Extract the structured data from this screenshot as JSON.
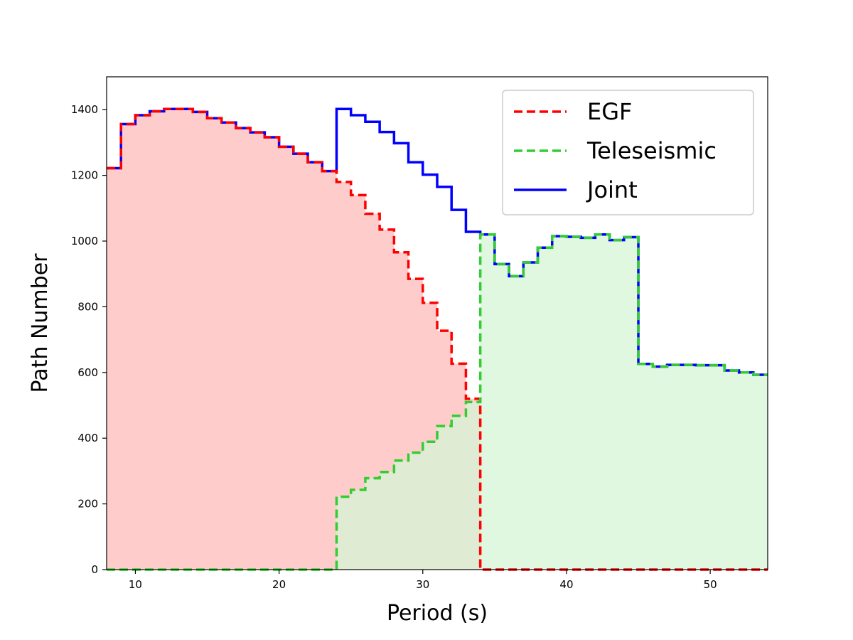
{
  "chart_data": {
    "type": "line",
    "drawstyle": "steps-post",
    "xlabel": "Period (s)",
    "ylabel": "Path Number",
    "xlim": [
      8,
      54
    ],
    "ylim": [
      0,
      1500
    ],
    "xticks": [
      10,
      20,
      30,
      40,
      50
    ],
    "yticks": [
      0,
      200,
      400,
      600,
      800,
      1000,
      1200,
      1400
    ],
    "grid": false,
    "legend_position": "top-right",
    "series": [
      {
        "name": "EGF",
        "style": "dashed",
        "color": "#ff0000",
        "fill_color": "#ffcccc",
        "x": [
          8,
          9,
          10,
          11,
          12,
          13,
          14,
          15,
          16,
          17,
          18,
          19,
          20,
          21,
          22,
          23,
          24,
          25,
          26,
          27,
          28,
          29,
          30,
          31,
          32,
          33,
          34,
          35,
          36,
          37,
          38,
          39,
          40,
          41,
          42,
          43,
          44,
          45,
          46,
          47,
          48,
          49,
          50,
          51,
          52,
          53,
          54
        ],
        "y": [
          1222,
          1356,
          1383,
          1395,
          1402,
          1402,
          1393,
          1374,
          1361,
          1344,
          1331,
          1316,
          1287,
          1266,
          1240,
          1213,
          1180,
          1140,
          1083,
          1035,
          966,
          885,
          812,
          727,
          627,
          520,
          0,
          0,
          0,
          0,
          0,
          0,
          0,
          0,
          0,
          0,
          0,
          0,
          0,
          0,
          0,
          0,
          0,
          0,
          0,
          0,
          0
        ]
      },
      {
        "name": "Teleseismic",
        "style": "dashed",
        "color": "#33cc33",
        "fill_color": "#d5f5d5",
        "x": [
          8,
          9,
          10,
          11,
          12,
          13,
          14,
          15,
          16,
          17,
          18,
          19,
          20,
          21,
          22,
          23,
          24,
          25,
          26,
          27,
          28,
          29,
          30,
          31,
          32,
          33,
          34,
          35,
          36,
          37,
          38,
          39,
          40,
          41,
          42,
          43,
          44,
          45,
          46,
          47,
          48,
          49,
          50,
          51,
          52,
          53,
          54
        ],
        "y": [
          0,
          0,
          0,
          0,
          0,
          0,
          0,
          0,
          0,
          0,
          0,
          0,
          0,
          0,
          0,
          0,
          222,
          243,
          278,
          297,
          332,
          356,
          389,
          437,
          468,
          510,
          1020,
          930,
          893,
          935,
          980,
          1015,
          1013,
          1010,
          1020,
          1003,
          1012,
          626,
          618,
          623,
          623,
          622,
          622,
          606,
          600,
          593,
          593
        ]
      },
      {
        "name": "Joint",
        "style": "solid",
        "color": "#0000ff",
        "x": [
          8,
          9,
          10,
          11,
          12,
          13,
          14,
          15,
          16,
          17,
          18,
          19,
          20,
          21,
          22,
          23,
          24,
          25,
          26,
          27,
          28,
          29,
          30,
          31,
          32,
          33,
          34,
          35,
          36,
          37,
          38,
          39,
          40,
          41,
          42,
          43,
          44,
          45,
          46,
          47,
          48,
          49,
          50,
          51,
          52,
          53,
          54
        ],
        "y": [
          1222,
          1356,
          1383,
          1395,
          1402,
          1402,
          1393,
          1374,
          1361,
          1344,
          1331,
          1316,
          1287,
          1266,
          1240,
          1213,
          1402,
          1383,
          1363,
          1332,
          1298,
          1240,
          1202,
          1165,
          1095,
          1028,
          1020,
          930,
          893,
          935,
          980,
          1015,
          1013,
          1010,
          1020,
          1003,
          1012,
          626,
          618,
          623,
          623,
          622,
          622,
          606,
          600,
          593,
          593
        ]
      }
    ]
  }
}
